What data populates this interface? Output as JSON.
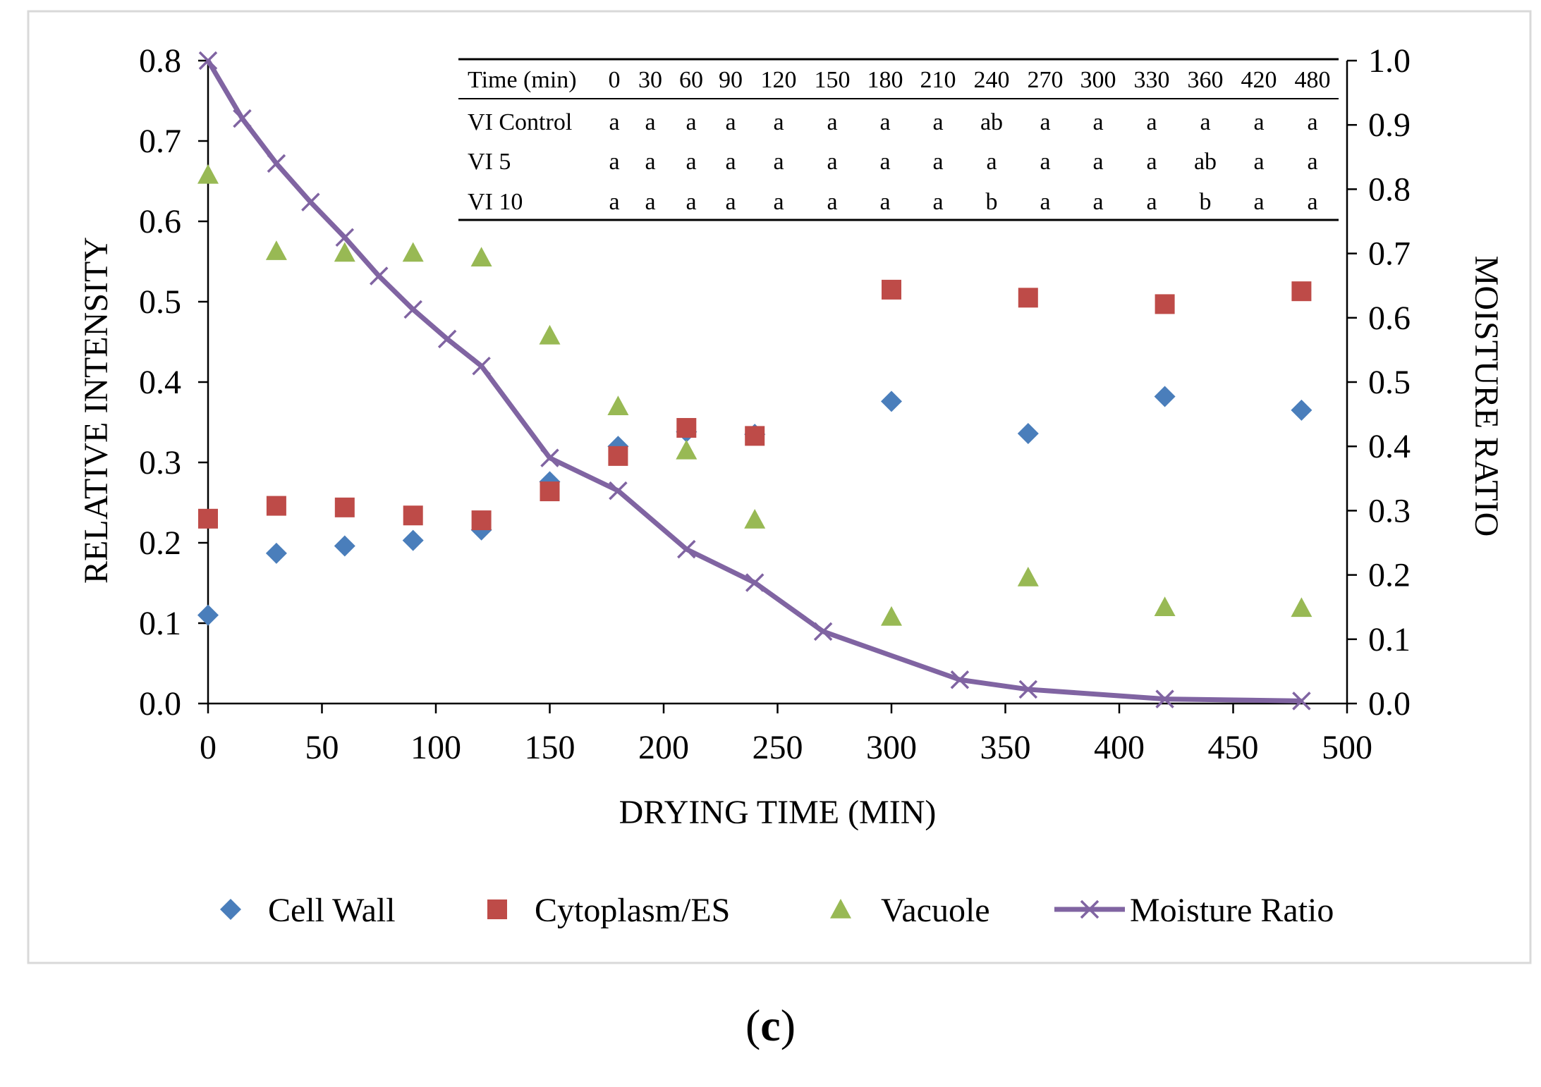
{
  "chart_data": {
    "type": "scatter",
    "xlabel": "DRYING TIME (MIN)",
    "ylabel": "RELATIVE INTENSITY",
    "y2label": "MOISTURE RATIO",
    "xlim": [
      0,
      500
    ],
    "ylim": [
      0,
      0.8
    ],
    "y2lim": [
      0,
      1.0
    ],
    "x_ticks": [
      "0",
      "50",
      "100",
      "150",
      "200",
      "250",
      "300",
      "350",
      "400",
      "450",
      "500"
    ],
    "y_ticks": [
      "0.0",
      "0.1",
      "0.2",
      "0.3",
      "0.4",
      "0.5",
      "0.6",
      "0.7",
      "0.8"
    ],
    "y2_ticks": [
      "0.0",
      "0.1",
      "0.2",
      "0.3",
      "0.4",
      "0.5",
      "0.6",
      "0.7",
      "0.8",
      "0.9",
      "1.0"
    ],
    "grid": false,
    "legend_position": "bottom",
    "series": [
      {
        "name": "Cell Wall",
        "marker": "diamond",
        "color": "#4a7ebb",
        "axis": "left",
        "x": [
          0,
          30,
          60,
          90,
          120,
          150,
          180,
          210,
          240,
          300,
          360,
          420,
          480
        ],
        "y": [
          0.11,
          0.187,
          0.196,
          0.203,
          0.216,
          0.276,
          0.32,
          0.338,
          0.335,
          0.376,
          0.336,
          0.382,
          0.365
        ]
      },
      {
        "name": "Cytoplasm/ES",
        "marker": "square",
        "color": "#be4b48",
        "axis": "left",
        "x": [
          0,
          30,
          60,
          90,
          120,
          150,
          180,
          210,
          240,
          300,
          360,
          420,
          480
        ],
        "y": [
          0.23,
          0.246,
          0.244,
          0.234,
          0.228,
          0.264,
          0.308,
          0.343,
          0.333,
          0.515,
          0.505,
          0.497,
          0.513
        ]
      },
      {
        "name": "Vacuole",
        "marker": "triangle",
        "color": "#98b954",
        "axis": "left",
        "x": [
          0,
          30,
          60,
          90,
          120,
          150,
          180,
          210,
          240,
          300,
          360,
          420,
          480
        ],
        "y": [
          0.658,
          0.563,
          0.561,
          0.561,
          0.555,
          0.458,
          0.37,
          0.315,
          0.229,
          0.108,
          0.157,
          0.12,
          0.119
        ]
      },
      {
        "name": "Moisture Ratio",
        "marker": "x-line",
        "color": "#8064a2",
        "axis": "right",
        "x": [
          0,
          15,
          30,
          45,
          60,
          75,
          90,
          105,
          120,
          150,
          180,
          210,
          240,
          270,
          330,
          360,
          420,
          480
        ],
        "y": [
          1.0,
          0.91,
          0.84,
          0.78,
          0.725,
          0.665,
          0.613,
          0.567,
          0.525,
          0.382,
          0.331,
          0.24,
          0.188,
          0.112,
          0.037,
          0.022,
          0.007,
          0.004
        ]
      }
    ],
    "inset_table": {
      "columns": [
        "Time (min)",
        "0",
        "30",
        "60",
        "90",
        "120",
        "150",
        "180",
        "210",
        "240",
        "270",
        "300",
        "330",
        "360",
        "420",
        "480"
      ],
      "rows": [
        [
          "VI Control",
          "a",
          "a",
          "a",
          "a",
          "a",
          "a",
          "a",
          "a",
          "ab",
          "a",
          "a",
          "a",
          "a",
          "a",
          "a"
        ],
        [
          "VI 5",
          "a",
          "a",
          "a",
          "a",
          "a",
          "a",
          "a",
          "a",
          "a",
          "a",
          "a",
          "a",
          "ab",
          "a",
          "a"
        ],
        [
          "VI 10",
          "a",
          "a",
          "a",
          "a",
          "a",
          "a",
          "a",
          "a",
          "b",
          "a",
          "a",
          "a",
          "b",
          "a",
          "a"
        ]
      ]
    }
  },
  "caption": {
    "open": "(",
    "letter": "c",
    "close": ")"
  }
}
